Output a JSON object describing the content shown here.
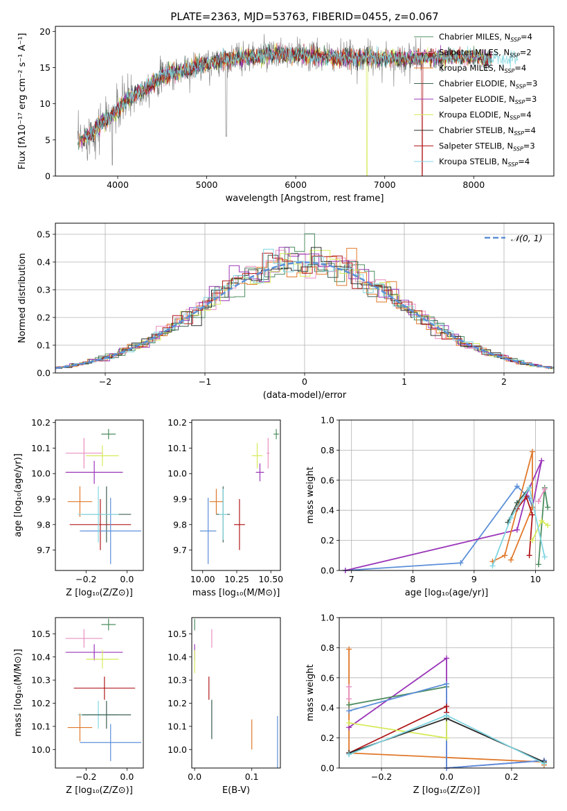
{
  "figure": {
    "title": "PLATE=2363, MJD=53763, FIBERID=0455, z=0.067"
  },
  "colors": {
    "chabrier_miles": "#4c8c5f",
    "salpeter_miles": "#e88fc0",
    "kroupa_miles": "#e0782a",
    "chabrier_elodie": "#3d5f4f",
    "salpeter_elodie": "#9a35b8",
    "kroupa_elodie": "#d6ea5a",
    "chabrier_stelib": "#2b2b2b",
    "salpeter_stelib": "#b0171a",
    "kroupa_stelib": "#80d5e0",
    "gaussian": "#5b8fd8",
    "grid": "#b0b0b0"
  },
  "chart_data": [
    {
      "id": "spectrum",
      "type": "line",
      "title": "PLATE=2363, MJD=53763, FIBERID=0455, z=0.067",
      "xlabel": "wavelength [Angstrom, rest frame]",
      "ylabel": "Flux [fλ10⁻¹⁷ erg cm⁻² s⁻¹ A⁻¹]",
      "xlim": [
        3300,
        8900
      ],
      "ylim": [
        0,
        20.7
      ],
      "xticks": [
        4000,
        5000,
        6000,
        7000,
        8000
      ],
      "yticks": [
        0,
        5,
        10,
        15,
        20
      ],
      "grid": false,
      "legend_position": "upper right",
      "legend": [
        {
          "label": "Chabrier MILES, N",
          "sub": "SSP",
          "tail": "=4",
          "color": "#4c8c5f"
        },
        {
          "label": "Salpeter MILES, N",
          "sub": "SSP",
          "tail": "=2",
          "color": "#e88fc0"
        },
        {
          "label": "Kroupa MILES, N",
          "sub": "SSP",
          "tail": "=4",
          "color": "#e0782a"
        },
        {
          "label": "Chabrier ELODIE, N",
          "sub": "SSP",
          "tail": "=3",
          "color": "#3d5f4f"
        },
        {
          "label": "Salpeter ELODIE, N",
          "sub": "SSP",
          "tail": "=3",
          "color": "#9a35b8"
        },
        {
          "label": "Kroupa ELODIE, N",
          "sub": "SSP",
          "tail": "=4",
          "color": "#d6ea5a"
        },
        {
          "label": "Chabrier STELIB, N",
          "sub": "SSP",
          "tail": "=4",
          "color": "#2b2b2b"
        },
        {
          "label": "Salpeter STELIB, N",
          "sub": "SSP",
          "tail": "=3",
          "color": "#b0171a"
        },
        {
          "label": "Kroupa STELIB, N",
          "sub": "SSP",
          "tail": "=4",
          "color": "#80d5e0"
        }
      ],
      "data_envelope": {
        "x": [
          3550,
          3700,
          3850,
          3950,
          4100,
          4300,
          4500,
          4700,
          4900,
          5100,
          5300,
          5500,
          5700,
          5900,
          6100,
          6300,
          6500,
          6700,
          6900,
          7100,
          7300,
          7500,
          7700,
          8000,
          8500
        ],
        "y": [
          4.5,
          6.0,
          7.5,
          8.5,
          10.5,
          12.0,
          13.8,
          14.5,
          15.2,
          15.8,
          16.3,
          16.5,
          16.7,
          16.8,
          16.6,
          16.5,
          16.3,
          16.4,
          16.3,
          16.2,
          16.3,
          16.4,
          16.5,
          16.4,
          15.8
        ]
      },
      "notable_dips": [
        {
          "x": 6800,
          "y_min": 0.0,
          "series": "Kroupa ELODIE"
        },
        {
          "x": 7420,
          "y_min": 0.0,
          "series": "Salpeter STELIB"
        },
        {
          "x": 5220,
          "y_min": 5.5,
          "series": "data"
        },
        {
          "x": 3940,
          "y_min": 1.5,
          "series": "data"
        }
      ]
    },
    {
      "id": "residuals",
      "type": "histogram",
      "xlabel": "(data-model)/error",
      "ylabel": "Normed distribution",
      "xlim": [
        -2.5,
        2.5
      ],
      "ylim": [
        0,
        0.54
      ],
      "xticks": [
        -2,
        -1,
        0,
        1,
        2
      ],
      "yticks": [
        0.0,
        0.1,
        0.2,
        0.3,
        0.4,
        0.5
      ],
      "grid": true,
      "legend_position": "upper right",
      "legend": [
        {
          "label": "𝒩(0, 1)",
          "color": "#5b8fd8",
          "style": "dashed"
        }
      ],
      "bin_width": 0.1,
      "gaussian": {
        "mean": 0,
        "sigma": 1
      }
    },
    {
      "id": "age-vs-Z",
      "type": "errorbar",
      "xlabel": "Z [log₁₀(Z/Z⊙)]",
      "ylabel": "age  [log₁₀(age/yr)]",
      "xlim": [
        -0.35,
        0.08
      ],
      "ylim": [
        9.62,
        10.21
      ],
      "xticks": [
        -0.2,
        0.0
      ],
      "yticks": [
        9.7,
        9.8,
        9.9,
        10.0,
        10.1,
        10.2
      ],
      "grid": false,
      "points": [
        {
          "x": -0.09,
          "y": 10.155,
          "xerr": 0.035,
          "yerr": 0.02,
          "color": "#4c8c5f"
        },
        {
          "x": -0.21,
          "y": 10.08,
          "xerr": 0.09,
          "yerr": 0.06,
          "color": "#e88fc0"
        },
        {
          "x": -0.12,
          "y": 10.07,
          "xerr": 0.08,
          "yerr": 0.04,
          "color": "#d6ea5a"
        },
        {
          "x": -0.16,
          "y": 10.005,
          "xerr": 0.14,
          "yerr": 0.045,
          "color": "#9a35b8"
        },
        {
          "x": -0.23,
          "y": 9.89,
          "xerr": 0.06,
          "yerr": 0.06,
          "color": "#e0782a"
        },
        {
          "x": -0.1,
          "y": 9.84,
          "xerr": 0.12,
          "yerr": 0.11,
          "color": "#3d5f4f"
        },
        {
          "x": -0.13,
          "y": 9.8,
          "xerr": 0.15,
          "yerr": 0.1,
          "color": "#b0171a"
        },
        {
          "x": -0.08,
          "y": 9.775,
          "xerr": 0.15,
          "yerr": 0.13,
          "color": "#5b8fd8"
        },
        {
          "x": -0.14,
          "y": 9.84,
          "xerr": 0.1,
          "yerr": 0.11,
          "color": "#80d5e0"
        }
      ]
    },
    {
      "id": "age-vs-mass",
      "type": "errorbar",
      "xlabel": "mass [log₁₀(M/M⊙)]",
      "ylabel": "",
      "xlim": [
        9.92,
        10.57
      ],
      "ylim": [
        9.62,
        10.21
      ],
      "xticks": [
        10.0,
        10.25,
        10.5
      ],
      "xtick_labels": [
        "10.00",
        "10.25",
        "10.50"
      ],
      "yticks": [
        9.7,
        9.8,
        9.9,
        10.0,
        10.1,
        10.2
      ],
      "grid": false,
      "points": [
        {
          "x": 10.54,
          "y": 10.155,
          "xerr": 0.02,
          "yerr": 0.02,
          "color": "#4c8c5f"
        },
        {
          "x": 10.48,
          "y": 10.08,
          "xerr": 0.01,
          "yerr": 0.06,
          "color": "#e88fc0"
        },
        {
          "x": 10.4,
          "y": 10.07,
          "xerr": 0.04,
          "yerr": 0.05,
          "color": "#d6ea5a"
        },
        {
          "x": 10.42,
          "y": 10.005,
          "xerr": 0.03,
          "yerr": 0.035,
          "color": "#9a35b8"
        },
        {
          "x": 10.1,
          "y": 9.89,
          "xerr": 0.05,
          "yerr": 0.05,
          "color": "#e0782a"
        },
        {
          "x": 10.15,
          "y": 9.84,
          "xerr": 0.05,
          "yerr": 0.11,
          "color": "#3d5f4f"
        },
        {
          "x": 10.27,
          "y": 9.8,
          "xerr": 0.04,
          "yerr": 0.1,
          "color": "#b0171a"
        },
        {
          "x": 10.04,
          "y": 9.775,
          "xerr": 0.06,
          "yerr": 0.13,
          "color": "#5b8fd8"
        },
        {
          "x": 10.15,
          "y": 9.84,
          "xerr": 0.03,
          "yerr": 0.1,
          "color": "#80d5e0"
        }
      ]
    },
    {
      "id": "massweight-vs-age",
      "type": "line",
      "xlabel": "age  [log₁₀(age/yr)]",
      "ylabel": "mass weight",
      "xlim": [
        6.8,
        10.3
      ],
      "ylim": [
        0,
        1.0
      ],
      "xticks": [
        7,
        8,
        9,
        10
      ],
      "yticks": [
        0.0,
        0.2,
        0.4,
        0.6,
        0.8,
        1.0
      ],
      "ytick_labels": [
        "0.0",
        "0.2",
        "0.4",
        "0.6",
        "0.8",
        "1.0"
      ],
      "grid": true,
      "series": [
        {
          "name": "Kroupa STELIB",
          "color": "#5b8fd8",
          "x": [
            6.9,
            8.78,
            9.7,
            9.9,
            9.95
          ],
          "y": [
            0.0,
            0.05,
            0.56,
            0.48,
            0.42
          ]
        },
        {
          "name": "Salpeter ELODIE",
          "color": "#9a35b8",
          "x": [
            6.9,
            9.7,
            9.85,
            10.1,
            9.95
          ],
          "y": [
            0.0,
            0.27,
            0.5,
            0.73,
            0.42
          ]
        },
        {
          "name": "Kroupa MILES",
          "color": "#e0782a",
          "x": [
            9.3,
            9.5,
            9.95,
            9.95,
            9.6
          ],
          "y": [
            0.06,
            0.1,
            0.79,
            0.42,
            0.07
          ]
        },
        {
          "name": "Salpeter STELIB",
          "color": "#b0171a",
          "x": [
            9.7,
            9.85,
            9.95,
            9.9
          ],
          "y": [
            0.41,
            0.49,
            0.37,
            0.1
          ]
        },
        {
          "name": "Chabrier MILES",
          "color": "#4c8c5f",
          "x": [
            10.05,
            10.15,
            10.2
          ],
          "y": [
            0.04,
            0.55,
            0.42
          ]
        },
        {
          "name": "Salpeter MILES",
          "color": "#e88fc0",
          "x": [
            10.05,
            10.15
          ],
          "y": [
            0.46,
            0.54
          ]
        },
        {
          "name": "Kroupa ELODIE",
          "color": "#d6ea5a",
          "x": [
            9.95,
            10.1,
            10.2
          ],
          "y": [
            0.2,
            0.33,
            0.3
          ]
        },
        {
          "name": "Chabrier ELODIE",
          "color": "#3d5f4f",
          "x": [
            9.55,
            9.7,
            9.9
          ],
          "y": [
            0.32,
            0.45,
            0.55
          ]
        },
        {
          "name": "Kroupa STELIB 2",
          "color": "#80d5e0",
          "x": [
            9.3,
            9.6,
            9.9,
            10.15
          ],
          "y": [
            0.03,
            0.35,
            0.55,
            0.09
          ]
        }
      ]
    },
    {
      "id": "mass-vs-Z",
      "type": "errorbar",
      "xlabel": "Z [log₁₀(Z/Z⊙)]",
      "ylabel": "mass [log₁₀(M/M⊙)]",
      "xlim": [
        -0.35,
        0.08
      ],
      "ylim": [
        9.92,
        10.57
      ],
      "xticks": [
        -0.2,
        0.0
      ],
      "yticks": [
        10.0,
        10.1,
        10.2,
        10.3,
        10.4,
        10.5
      ],
      "grid": false,
      "points": [
        {
          "x": -0.09,
          "y": 10.54,
          "xerr": 0.035,
          "yerr": 0.025,
          "color": "#4c8c5f"
        },
        {
          "x": -0.21,
          "y": 10.48,
          "xerr": 0.09,
          "yerr": 0.04,
          "color": "#e88fc0"
        },
        {
          "x": -0.16,
          "y": 10.42,
          "xerr": 0.14,
          "yerr": 0.035,
          "color": "#9a35b8"
        },
        {
          "x": -0.12,
          "y": 10.39,
          "xerr": 0.08,
          "yerr": 0.04,
          "color": "#d6ea5a"
        },
        {
          "x": -0.11,
          "y": 10.265,
          "xerr": 0.15,
          "yerr": 0.05,
          "color": "#b0171a"
        },
        {
          "x": -0.14,
          "y": 10.15,
          "xerr": 0.1,
          "yerr": 0.06,
          "color": "#80d5e0"
        },
        {
          "x": -0.1,
          "y": 10.15,
          "xerr": 0.12,
          "yerr": 0.06,
          "color": "#3d5f4f"
        },
        {
          "x": -0.23,
          "y": 10.095,
          "xerr": 0.06,
          "yerr": 0.06,
          "color": "#e0782a"
        },
        {
          "x": -0.08,
          "y": 10.03,
          "xerr": 0.15,
          "yerr": 0.08,
          "color": "#5b8fd8"
        }
      ]
    },
    {
      "id": "mass-vs-ebv",
      "type": "errorbar",
      "xlabel": "E(B-V)",
      "ylabel": "",
      "xlim": [
        -0.005,
        0.15
      ],
      "ylim": [
        9.92,
        10.57
      ],
      "xticks": [
        0.0,
        0.1
      ],
      "xtick_labels": [
        "0.0",
        "0.1"
      ],
      "yticks": [
        10.0,
        10.1,
        10.2,
        10.3,
        10.4,
        10.5
      ],
      "grid": false,
      "points": [
        {
          "x": 0.0,
          "y": 10.54,
          "xerr": 0,
          "yerr": 0.025,
          "color": "#4c8c5f"
        },
        {
          "x": 0.03,
          "y": 10.48,
          "xerr": 0,
          "yerr": 0.04,
          "color": "#e88fc0"
        },
        {
          "x": 0.0,
          "y": 10.42,
          "xerr": 0,
          "yerr": 0.035,
          "color": "#9a35b8"
        },
        {
          "x": 0.0,
          "y": 10.38,
          "xerr": 0,
          "yerr": 0.05,
          "color": "#d6ea5a"
        },
        {
          "x": 0.025,
          "y": 10.265,
          "xerr": 0,
          "yerr": 0.05,
          "color": "#b0171a"
        },
        {
          "x": 0.03,
          "y": 10.13,
          "xerr": 0,
          "yerr": 0.08,
          "color": "#80d5e0"
        },
        {
          "x": 0.03,
          "y": 10.13,
          "xerr": 0,
          "yerr": 0.085,
          "color": "#3d5f4f"
        },
        {
          "x": 0.1,
          "y": 10.065,
          "xerr": 0,
          "yerr": 0.065,
          "color": "#e0782a"
        },
        {
          "x": 0.145,
          "y": 10.025,
          "xerr": 0,
          "yerr": 0.12,
          "color": "#5b8fd8"
        }
      ]
    },
    {
      "id": "massweight-vs-Z",
      "type": "line",
      "xlabel": "Z [log₁₀(Z/Z⊙)]",
      "ylabel": "mass weight",
      "xlim": [
        -0.33,
        0.33
      ],
      "ylim": [
        0,
        1.0
      ],
      "xticks": [
        -0.2,
        0.0,
        0.2
      ],
      "xtick_labels": [
        "−0.2",
        "0.0",
        "0.2"
      ],
      "yticks": [
        0.0,
        0.2,
        0.4,
        0.6,
        0.8,
        1.0
      ],
      "ytick_labels": [
        "0.0",
        "0.2",
        "0.4",
        "0.6",
        "0.8",
        "1.0"
      ],
      "grid": true,
      "series": [
        {
          "name": "Kroupa MILES",
          "color": "#e0782a",
          "x": [
            -0.3,
            -0.3,
            0.0,
            0.3,
            0.3
          ],
          "y": [
            0.79,
            0.1,
            0.07,
            0.04,
            0.02
          ]
        },
        {
          "name": "Salpeter ELODIE",
          "color": "#9a35b8",
          "x": [
            -0.3,
            0.0,
            0.0,
            0.3
          ],
          "y": [
            0.27,
            0.73,
            0.0,
            0.05
          ]
        },
        {
          "name": "Chabrier MILES",
          "color": "#4c8c5f",
          "x": [
            -0.3,
            0.0
          ],
          "y": [
            0.42,
            0.54
          ]
        },
        {
          "name": "Kroupa STELIB",
          "color": "#5b8fd8",
          "x": [
            -0.3,
            0.0,
            0.0,
            0.3
          ],
          "y": [
            0.38,
            0.56,
            0.0,
            0.05
          ]
        },
        {
          "name": "Salpeter STELIB",
          "color": "#b0171a",
          "x": [
            -0.3,
            0.0,
            0.0
          ],
          "y": [
            0.1,
            0.41,
            0.37
          ]
        },
        {
          "name": "Kroupa ELODIE",
          "color": "#d6ea5a",
          "x": [
            -0.3,
            0.0,
            0.0
          ],
          "y": [
            0.3,
            0.2,
            0.33
          ]
        },
        {
          "name": "Chabrier STELIB",
          "color": "#2b2b2b",
          "x": [
            -0.3,
            0.0,
            0.3
          ],
          "y": [
            0.1,
            0.33,
            0.04
          ]
        },
        {
          "name": "Kroupa STELIB 2",
          "color": "#80d5e0",
          "x": [
            -0.3,
            0.0,
            0.3
          ],
          "y": [
            0.09,
            0.35,
            0.03
          ]
        },
        {
          "name": "Salpeter MILES",
          "color": "#e88fc0",
          "x": [
            -0.3,
            -0.3
          ],
          "y": [
            0.46,
            0.54
          ]
        }
      ]
    }
  ]
}
